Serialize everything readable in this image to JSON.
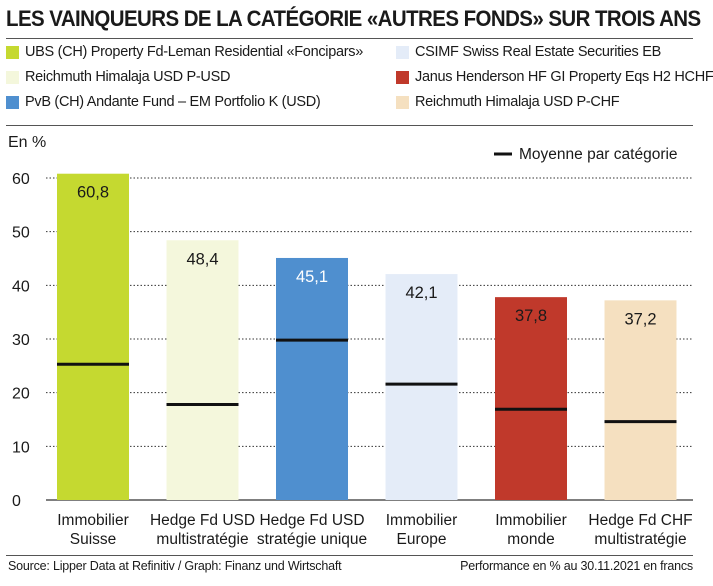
{
  "title": "LES VAINQUEURS DE LA CATÉGORIE «AUTRES FONDS» SUR TROIS ANS",
  "legend": [
    {
      "label": "UBS (CH) Property Fd-Leman Residential «Foncipars»",
      "color": "#c5d930"
    },
    {
      "label": "CSIMF Swiss Real Estate Securities EB",
      "color": "#e4ecf8"
    },
    {
      "label": "Reichmuth Himalaja USD P-USD",
      "color": "#f4f7dc"
    },
    {
      "label": "Janus Henderson HF GI Property Eqs H2 HCHF",
      "color": "#c0392b"
    },
    {
      "label": "PvB (CH) Andante Fund – EM Portfolio K (USD)",
      "color": "#4f8fcf"
    },
    {
      "label": "Reichmuth Himalaja USD P-CHF",
      "color": "#f5e0c0"
    }
  ],
  "footer": {
    "source": "Source: Lipper Data at Refinitiv / Graph: Finanz und Wirtschaft",
    "note": "Performance en % au 30.11.2021 en francs"
  },
  "chart_data": {
    "type": "bar",
    "ylabel": "En %",
    "ylim": [
      0,
      60
    ],
    "yticks": [
      0,
      10,
      20,
      30,
      40,
      50,
      60
    ],
    "grid": true,
    "marker_label": "Moyenne par catégorie",
    "categories": [
      [
        "Immobilier",
        "Suisse"
      ],
      [
        "Hedge Fd USD",
        "multistratégie"
      ],
      [
        "Hedge Fd USD",
        "stratégie unique"
      ],
      [
        "Immobilier",
        "Europe"
      ],
      [
        "Immobilier",
        "monde"
      ],
      [
        "Hedge Fd CHF",
        "multistratégie"
      ]
    ],
    "values": [
      60.8,
      48.4,
      45.1,
      42.1,
      37.8,
      37.2
    ],
    "value_labels": [
      "60,8",
      "48,4",
      "45,1",
      "42,1",
      "37,8",
      "37,2"
    ],
    "averages": [
      25.3,
      17.8,
      29.8,
      21.6,
      16.9,
      14.6
    ],
    "colors": [
      "#c5d930",
      "#f4f7dc",
      "#4f8fcf",
      "#e4ecf8",
      "#c0392b",
      "#f5e0c0"
    ],
    "label_colors": [
      "#1a1a1a",
      "#1a1a1a",
      "#ffffff",
      "#1a1a1a",
      "#1a1a1a",
      "#1a1a1a"
    ]
  }
}
